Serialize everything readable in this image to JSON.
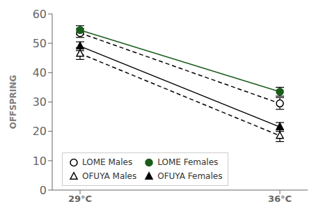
{
  "chart_data": {
    "type": "line",
    "categories": [
      "29°C",
      "36°C"
    ],
    "ylabel": "OFFSPRING",
    "ylim": [
      0,
      60
    ],
    "yticks": [
      0,
      10,
      20,
      30,
      40,
      50,
      60
    ],
    "grid": false,
    "legend": "lower left",
    "series": [
      {
        "name": "LOME Males",
        "values": [
          53.5,
          29.5
        ],
        "yerr": [
          1.5,
          2.0
        ],
        "color": "black",
        "marker": "circle-open",
        "line_style": "dashed"
      },
      {
        "name": "LOME Females",
        "values": [
          54.5,
          33.5
        ],
        "yerr": [
          1.5,
          1.5
        ],
        "color": "#1a5c1a",
        "marker": "circle",
        "line_style": "solid"
      },
      {
        "name": "OFUYA Males",
        "values": [
          46.5,
          18.5
        ],
        "yerr": [
          2.0,
          2.0
        ],
        "color": "black",
        "marker": "triangle-open",
        "line_style": "dashed"
      },
      {
        "name": "OFUYA Females",
        "values": [
          49.0,
          21.5
        ],
        "yerr": [
          1.5,
          1.5
        ],
        "color": "black",
        "marker": "triangle",
        "line_style": "solid"
      }
    ]
  }
}
